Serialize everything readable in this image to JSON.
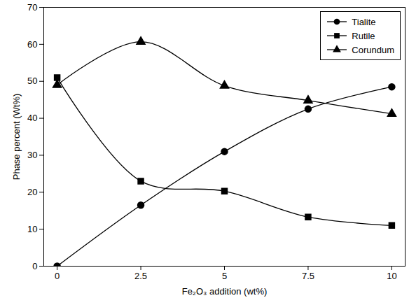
{
  "chart_data": {
    "type": "line",
    "x_label": "Fe₂O₃ addition (wt%)",
    "y_label": "Phase percent (Wt%)",
    "x": [
      0,
      2.5,
      5,
      7.5,
      10
    ],
    "series": [
      {
        "name": "Tialite",
        "color": "#000000",
        "marker": "circle",
        "line_style": "smooth",
        "values": [
          0,
          16.5,
          31,
          42.5,
          48.5
        ]
      },
      {
        "name": "Rutile",
        "color": "#000000",
        "marker": "square",
        "line_style": "smooth",
        "values": [
          51,
          23,
          20.3,
          13.3,
          11
        ]
      },
      {
        "name": "Corundum",
        "color": "#000000",
        "marker": "triangle",
        "line_style": "smooth",
        "values": [
          49,
          60.7,
          48.8,
          44.8,
          41.2
        ]
      }
    ],
    "xlim": [
      -0.4,
      10.4
    ],
    "xticks": [
      0,
      2.5,
      5,
      7.5,
      10
    ],
    "ylim": [
      0,
      70
    ],
    "yticks": [
      0,
      10,
      20,
      30,
      40,
      50,
      60,
      70
    ],
    "grid": false,
    "legend": "top-right"
  }
}
